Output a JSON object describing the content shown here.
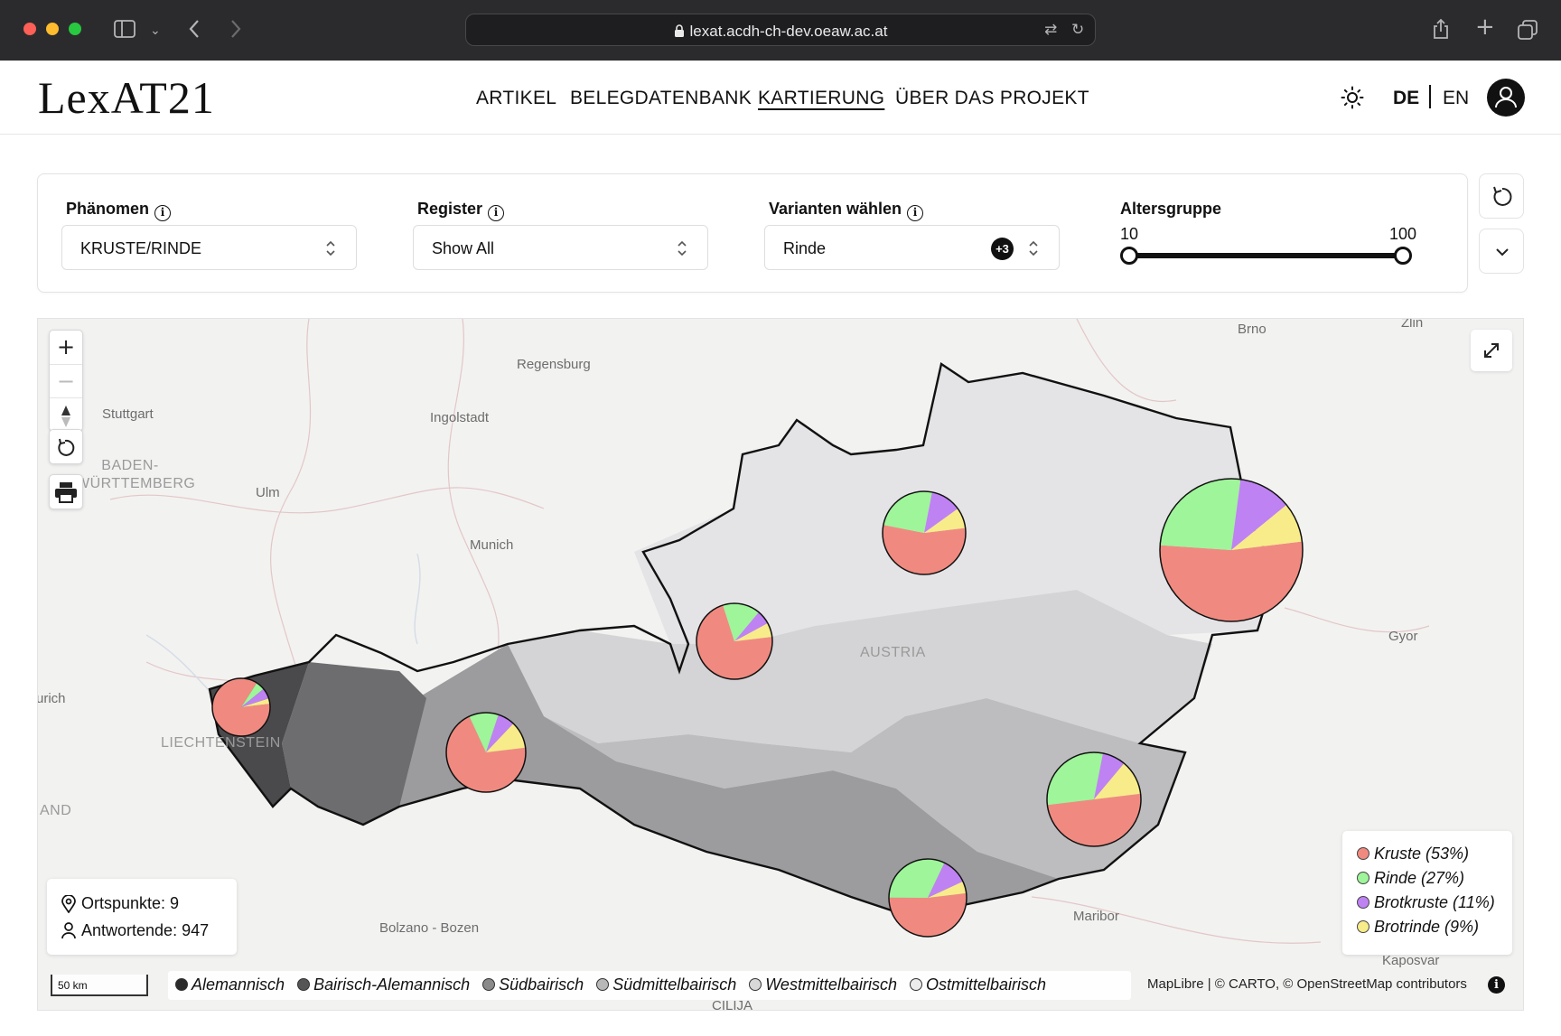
{
  "browser": {
    "url": "lexat.acdh-ch-dev.oeaw.ac.at"
  },
  "site": {
    "logo": "LexAT21",
    "nav": [
      {
        "label": "ARTIKEL"
      },
      {
        "label": "BELEGDATENBANK"
      },
      {
        "label": "KARTIERUNG",
        "active": true
      },
      {
        "label": "ÜBER DAS PROJEKT"
      }
    ],
    "lang_de": "DE",
    "lang_en": "EN"
  },
  "filters": {
    "phenomenon": {
      "label": "Phänomen",
      "value": "KRUSTE/RINDE"
    },
    "register": {
      "label": "Register",
      "value": "Show All"
    },
    "variants": {
      "label": "Varianten wählen",
      "value": "Rinde",
      "extra_count": "+3"
    },
    "age": {
      "label": "Altersgruppe",
      "min": "10",
      "max": "100"
    }
  },
  "map": {
    "cities": [
      "Regensburg",
      "Ingolstadt",
      "Stuttgart",
      "Ulm",
      "Munich",
      "Brno",
      "Zlin",
      "Gyor",
      "urich",
      "Bolzano - Bozen",
      "Maribor",
      "Kaposvar",
      "CILIJA"
    ],
    "regions": [
      "BADEN-WÜRTTEMBERG",
      "AUSTRIA",
      "LIECHTENSTEIN",
      "AND"
    ],
    "info": {
      "points": "Ortspunkte: 9",
      "respondents": "Antwortende: 947"
    },
    "scale": "50 km",
    "attribution": "MapLibre | © CARTO, © OpenStreetMap contributors",
    "legend": [
      {
        "label": "Kruste (53%)",
        "color": "#f08a80"
      },
      {
        "label": "Rinde (27%)",
        "color": "#9ef59a"
      },
      {
        "label": "Brotkruste (11%)",
        "color": "#bf82f2"
      },
      {
        "label": "Brotrinde (9%)",
        "color": "#f8ec8a"
      }
    ],
    "dialects": [
      {
        "label": "Alemannisch",
        "color": "#2a2a2a"
      },
      {
        "label": "Bairisch-Alemannisch",
        "color": "#555555"
      },
      {
        "label": "Südbairisch",
        "color": "#8a8a8a"
      },
      {
        "label": "Südmittelbairisch",
        "color": "#b8b8b8"
      },
      {
        "label": "Westmittelbairisch",
        "color": "#d8d8d8"
      },
      {
        "label": "Ostmittelbairisch",
        "color": "#ececec"
      }
    ]
  }
}
